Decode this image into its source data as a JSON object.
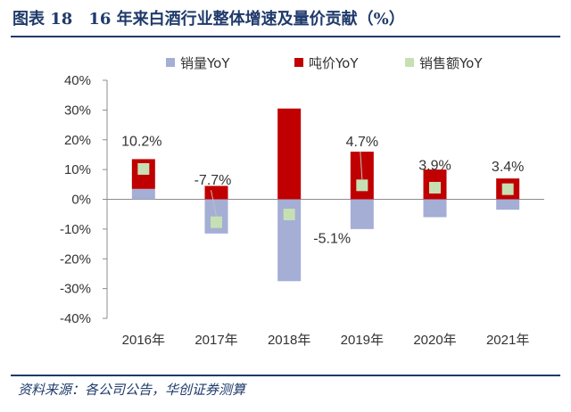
{
  "header": {
    "title": "图表 18　16 年来白酒行业整体增速及量价贡献（%）"
  },
  "footer": {
    "source": "资料来源：各公司公告，华创证券测算"
  },
  "chart_data": {
    "type": "bar",
    "title": "16 年来白酒行业整体增速及量价贡献（%）",
    "categories": [
      "2016年",
      "2017年",
      "2018年",
      "2019年",
      "2020年",
      "2021年"
    ],
    "series": [
      {
        "name": "销量YoY",
        "kind": "bar",
        "color": "#a5aed4",
        "values": [
          3.5,
          -11.5,
          -27.5,
          -10,
          -6,
          -3.5
        ]
      },
      {
        "name": "吨价YoY",
        "kind": "bar",
        "color": "#c00000",
        "values": [
          10,
          4.5,
          30.5,
          16,
          10,
          7
        ]
      },
      {
        "name": "销售额YoY",
        "kind": "marker",
        "color": "#c6e0b4",
        "values": [
          10.2,
          -7.7,
          -5.1,
          4.7,
          3.9,
          3.4
        ]
      }
    ],
    "data_labels": [
      "10.2%",
      "-7.7%",
      "-5.1%",
      "4.7%",
      "3.9%",
      "3.4%"
    ],
    "y_ticks": [
      "40%",
      "30%",
      "20%",
      "10%",
      "0%",
      "-10%",
      "-20%",
      "-30%",
      "-40%"
    ],
    "ylim": [
      -40,
      40
    ],
    "xlabel": "",
    "ylabel": "",
    "legend_position": "top-center"
  }
}
